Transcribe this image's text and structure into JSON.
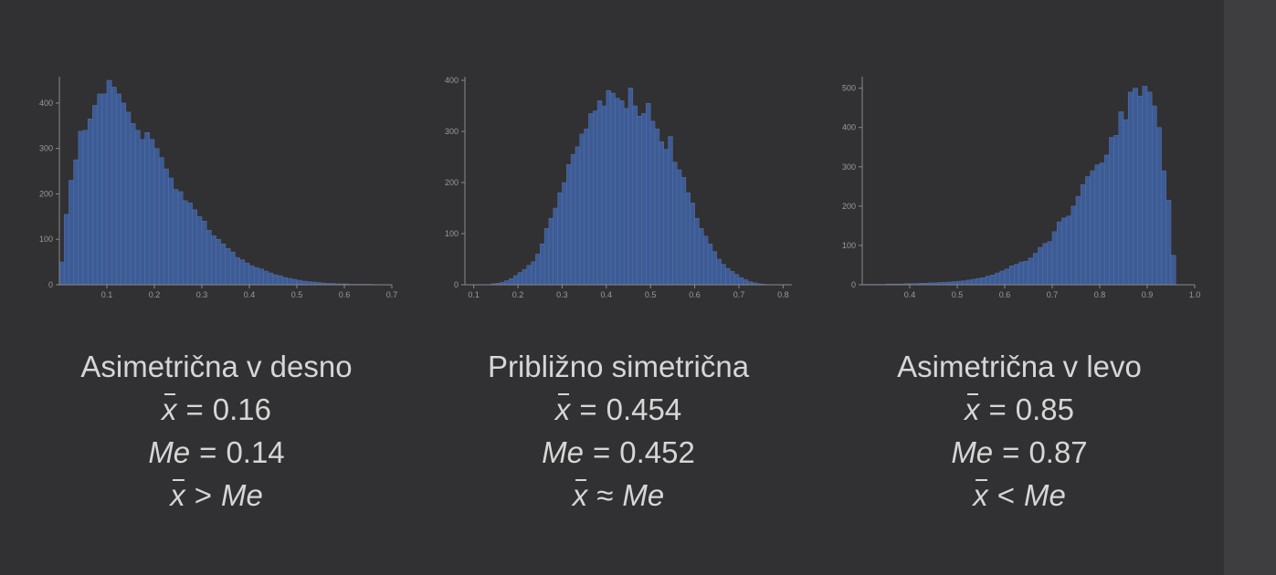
{
  "colors": {
    "background": "#313032",
    "bar_fill": "#3d5b95",
    "bar_edge": "#5672a8",
    "axis": "#8a8a8a",
    "text": "#d6d6d6"
  },
  "panels": [
    {
      "caption": {
        "title": "Asimetrična v desno",
        "mean_value": "0.16",
        "median_value": "0.14",
        "relation": ">"
      }
    },
    {
      "caption": {
        "title": "Približno simetrična",
        "mean_value": "0.454",
        "median_value": "0.452",
        "relation": "≈"
      }
    },
    {
      "caption": {
        "title": "Asimetrična v levo",
        "mean_value": "0.85",
        "median_value": "0.87",
        "relation": "<"
      }
    }
  ],
  "math": {
    "x": "x",
    "median_symbol": "Me",
    "equals": "="
  },
  "chart_data": [
    {
      "type": "bar",
      "x_start": 0.0,
      "bin_width": 0.01,
      "xlim": [
        0.0,
        0.7
      ],
      "ylim": [
        0,
        450
      ],
      "xticks": [
        0.1,
        0.2,
        0.3,
        0.4,
        0.5,
        0.6,
        0.7
      ],
      "xtick_labels": [
        "0.1",
        "0.2",
        "0.3",
        "0.4",
        "0.5",
        "0.6",
        "0.7"
      ],
      "yticks": [
        0,
        100,
        200,
        300,
        400
      ],
      "ytick_labels": [
        "0",
        "100",
        "200",
        "300",
        "400"
      ],
      "values": [
        50,
        155,
        230,
        275,
        338,
        340,
        365,
        395,
        420,
        420,
        450,
        435,
        420,
        400,
        380,
        355,
        340,
        320,
        335,
        320,
        300,
        280,
        255,
        235,
        210,
        205,
        185,
        180,
        165,
        150,
        140,
        120,
        108,
        100,
        90,
        80,
        72,
        60,
        55,
        48,
        42,
        38,
        35,
        30,
        26,
        22,
        20,
        16,
        14,
        12,
        10,
        8,
        7,
        6,
        5,
        4,
        3,
        3,
        2,
        2,
        2,
        1,
        1,
        1,
        1,
        1,
        0,
        0,
        0,
        0
      ]
    },
    {
      "type": "bar",
      "x_start": 0.1,
      "bin_width": 0.01,
      "xlim": [
        0.08,
        0.82
      ],
      "ylim": [
        0,
        400
      ],
      "xticks": [
        0.1,
        0.2,
        0.3,
        0.4,
        0.5,
        0.6,
        0.7,
        0.8
      ],
      "xtick_labels": [
        "0.1",
        "0.2",
        "0.3",
        "0.4",
        "0.5",
        "0.6",
        "0.7",
        "0.8"
      ],
      "yticks": [
        0,
        100,
        200,
        300,
        400
      ],
      "ytick_labels": [
        "0",
        "100",
        "200",
        "300",
        "400"
      ],
      "values": [
        0,
        0,
        0,
        0,
        2,
        3,
        5,
        8,
        12,
        18,
        24,
        30,
        38,
        45,
        60,
        80,
        110,
        130,
        150,
        180,
        200,
        235,
        255,
        270,
        295,
        305,
        335,
        340,
        360,
        350,
        380,
        375,
        365,
        360,
        345,
        385,
        350,
        330,
        335,
        355,
        320,
        305,
        280,
        265,
        290,
        240,
        225,
        210,
        180,
        160,
        130,
        110,
        95,
        80,
        65,
        50,
        40,
        32,
        26,
        20,
        14,
        10,
        6,
        4,
        2,
        1,
        0,
        0,
        0,
        0
      ]
    },
    {
      "type": "bar",
      "x_start": 0.3,
      "bin_width": 0.01,
      "xlim": [
        0.3,
        1.0
      ],
      "ylim": [
        0,
        520
      ],
      "xticks": [
        0.4,
        0.5,
        0.6,
        0.7,
        0.8,
        0.9,
        1.0
      ],
      "xtick_labels": [
        "0.4",
        "0.5",
        "0.6",
        "0.7",
        "0.8",
        "0.9",
        "1.0"
      ],
      "yticks": [
        0,
        100,
        200,
        300,
        400,
        500
      ],
      "ytick_labels": [
        "0",
        "100",
        "200",
        "300",
        "400",
        "500"
      ],
      "values": [
        1,
        1,
        1,
        1,
        1,
        2,
        2,
        2,
        2,
        3,
        3,
        3,
        4,
        4,
        5,
        5,
        6,
        6,
        7,
        8,
        9,
        10,
        12,
        14,
        16,
        18,
        22,
        25,
        30,
        35,
        40,
        48,
        52,
        58,
        60,
        68,
        80,
        95,
        105,
        110,
        135,
        160,
        170,
        175,
        200,
        225,
        255,
        275,
        290,
        305,
        310,
        330,
        375,
        380,
        440,
        420,
        490,
        500,
        480,
        505,
        490,
        455,
        400,
        290,
        215,
        75
      ]
    }
  ]
}
